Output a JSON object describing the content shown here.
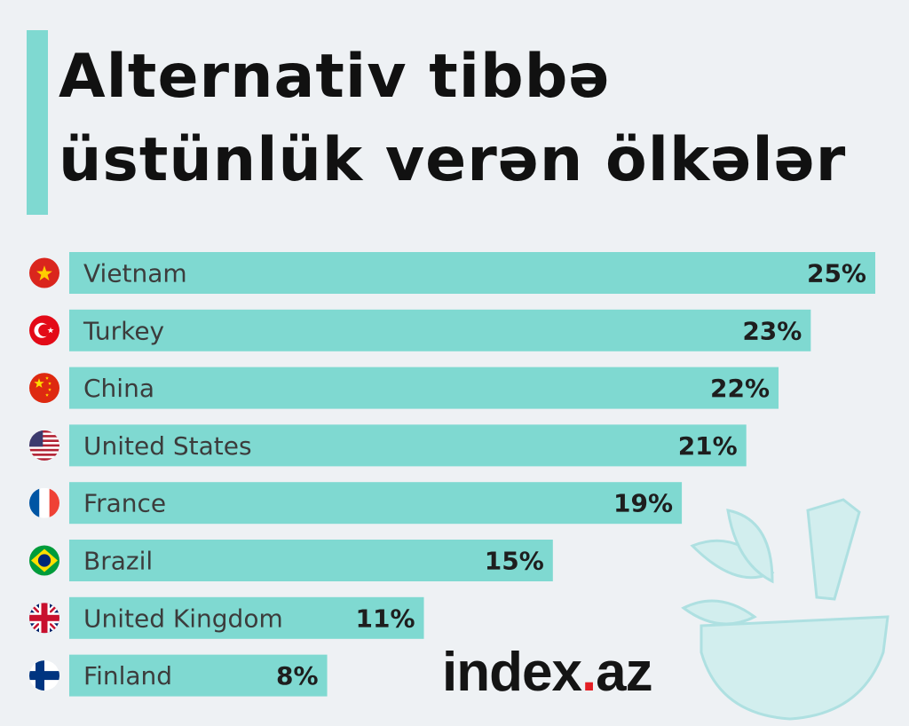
{
  "title": {
    "line1": "Alternativ tibbə",
    "line2": "üstünlük verən ölkələr"
  },
  "chart_data": {
    "type": "bar",
    "orientation": "horizontal",
    "categories": [
      "Vietnam",
      "Turkey",
      "China",
      "United States",
      "France",
      "Brazil",
      "United Kingdom",
      "Finland"
    ],
    "values": [
      25,
      23,
      22,
      21,
      19,
      15,
      11,
      8
    ],
    "value_labels": [
      "25%",
      "23%",
      "22%",
      "21%",
      "19%",
      "15%",
      "11%",
      "8%"
    ],
    "flags": [
      "vietnam-flag-icon",
      "turkey-flag-icon",
      "china-flag-icon",
      "usa-flag-icon",
      "france-flag-icon",
      "brazil-flag-icon",
      "uk-flag-icon",
      "finland-flag-icon"
    ],
    "xlim": [
      0,
      25
    ],
    "grid": false,
    "legend": "none",
    "bar_color": "#7fd9d1"
  },
  "colors": {
    "background": "#eef1f4",
    "accent": "#7fd9d1",
    "logo_dot": "#e31e24"
  },
  "logo": {
    "name": "index",
    "dot": ".",
    "tld": "az"
  }
}
